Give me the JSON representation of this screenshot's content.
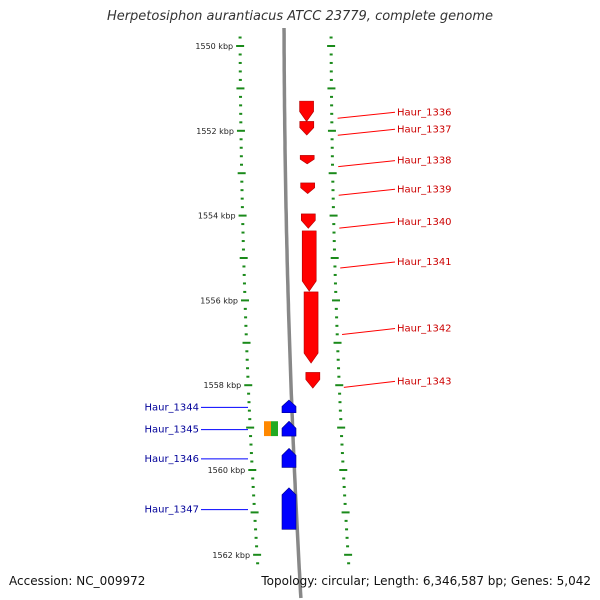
{
  "header": {
    "title": "Herpetosiphon aurantiacus ATCC 23779, complete genome"
  },
  "footer": {
    "accession": "Accession: NC_009972",
    "summary": "Topology: circular; Length: 6,346,587 bp; Genes: 5,042"
  },
  "colors": {
    "forward_gene": "#ff0000",
    "reverse_gene": "#0000ff",
    "forward_label": "#cc0000",
    "reverse_label": "#000099",
    "tick": "#1a8a1a",
    "backbone": "#888888",
    "feature_orange": "#ff8800",
    "feature_green": "#22aa22"
  },
  "chart_data": {
    "type": "genome-map",
    "position_unit": "kbp",
    "range_kbp": [
      1549.7,
      1562.4
    ],
    "position_labels": [
      {
        "kbp": 1550,
        "label": "1550 kbp"
      },
      {
        "kbp": 1552,
        "label": "1552 kbp"
      },
      {
        "kbp": 1554,
        "label": "1554 kbp"
      },
      {
        "kbp": 1556,
        "label": "1556 kbp"
      },
      {
        "kbp": 1558,
        "label": "1558 kbp"
      },
      {
        "kbp": 1560,
        "label": "1560 kbp"
      },
      {
        "kbp": 1562,
        "label": "1562 kbp"
      }
    ],
    "forward_genes": [
      {
        "name": "Haur_1336",
        "start_kbp": 1551.3,
        "end_kbp": 1551.78
      },
      {
        "name": "Haur_1337",
        "start_kbp": 1551.78,
        "end_kbp": 1552.1
      },
      {
        "name": "Haur_1338",
        "start_kbp": 1552.58,
        "end_kbp": 1552.78
      },
      {
        "name": "Haur_1339",
        "start_kbp": 1553.23,
        "end_kbp": 1553.48
      },
      {
        "name": "Haur_1340",
        "start_kbp": 1553.96,
        "end_kbp": 1554.3
      },
      {
        "name": "Haur_1341",
        "start_kbp": 1554.36,
        "end_kbp": 1555.78
      },
      {
        "name": "Haur_1342",
        "start_kbp": 1555.8,
        "end_kbp": 1557.48
      },
      {
        "name": "Haur_1343",
        "start_kbp": 1557.7,
        "end_kbp": 1558.07
      }
    ],
    "reverse_genes": [
      {
        "name": "Haur_1344",
        "start_kbp": 1558.35,
        "end_kbp": 1558.65
      },
      {
        "name": "Haur_1345",
        "start_kbp": 1558.85,
        "end_kbp": 1559.2
      },
      {
        "name": "Haur_1346",
        "start_kbp": 1559.49,
        "end_kbp": 1559.94
      },
      {
        "name": "Haur_1347",
        "start_kbp": 1560.42,
        "end_kbp": 1561.4
      }
    ],
    "other_features": [
      {
        "kind": "orange-feature",
        "start_kbp": 1558.85,
        "end_kbp": 1559.2
      },
      {
        "kind": "green-feature",
        "start_kbp": 1558.85,
        "end_kbp": 1559.2
      }
    ]
  }
}
